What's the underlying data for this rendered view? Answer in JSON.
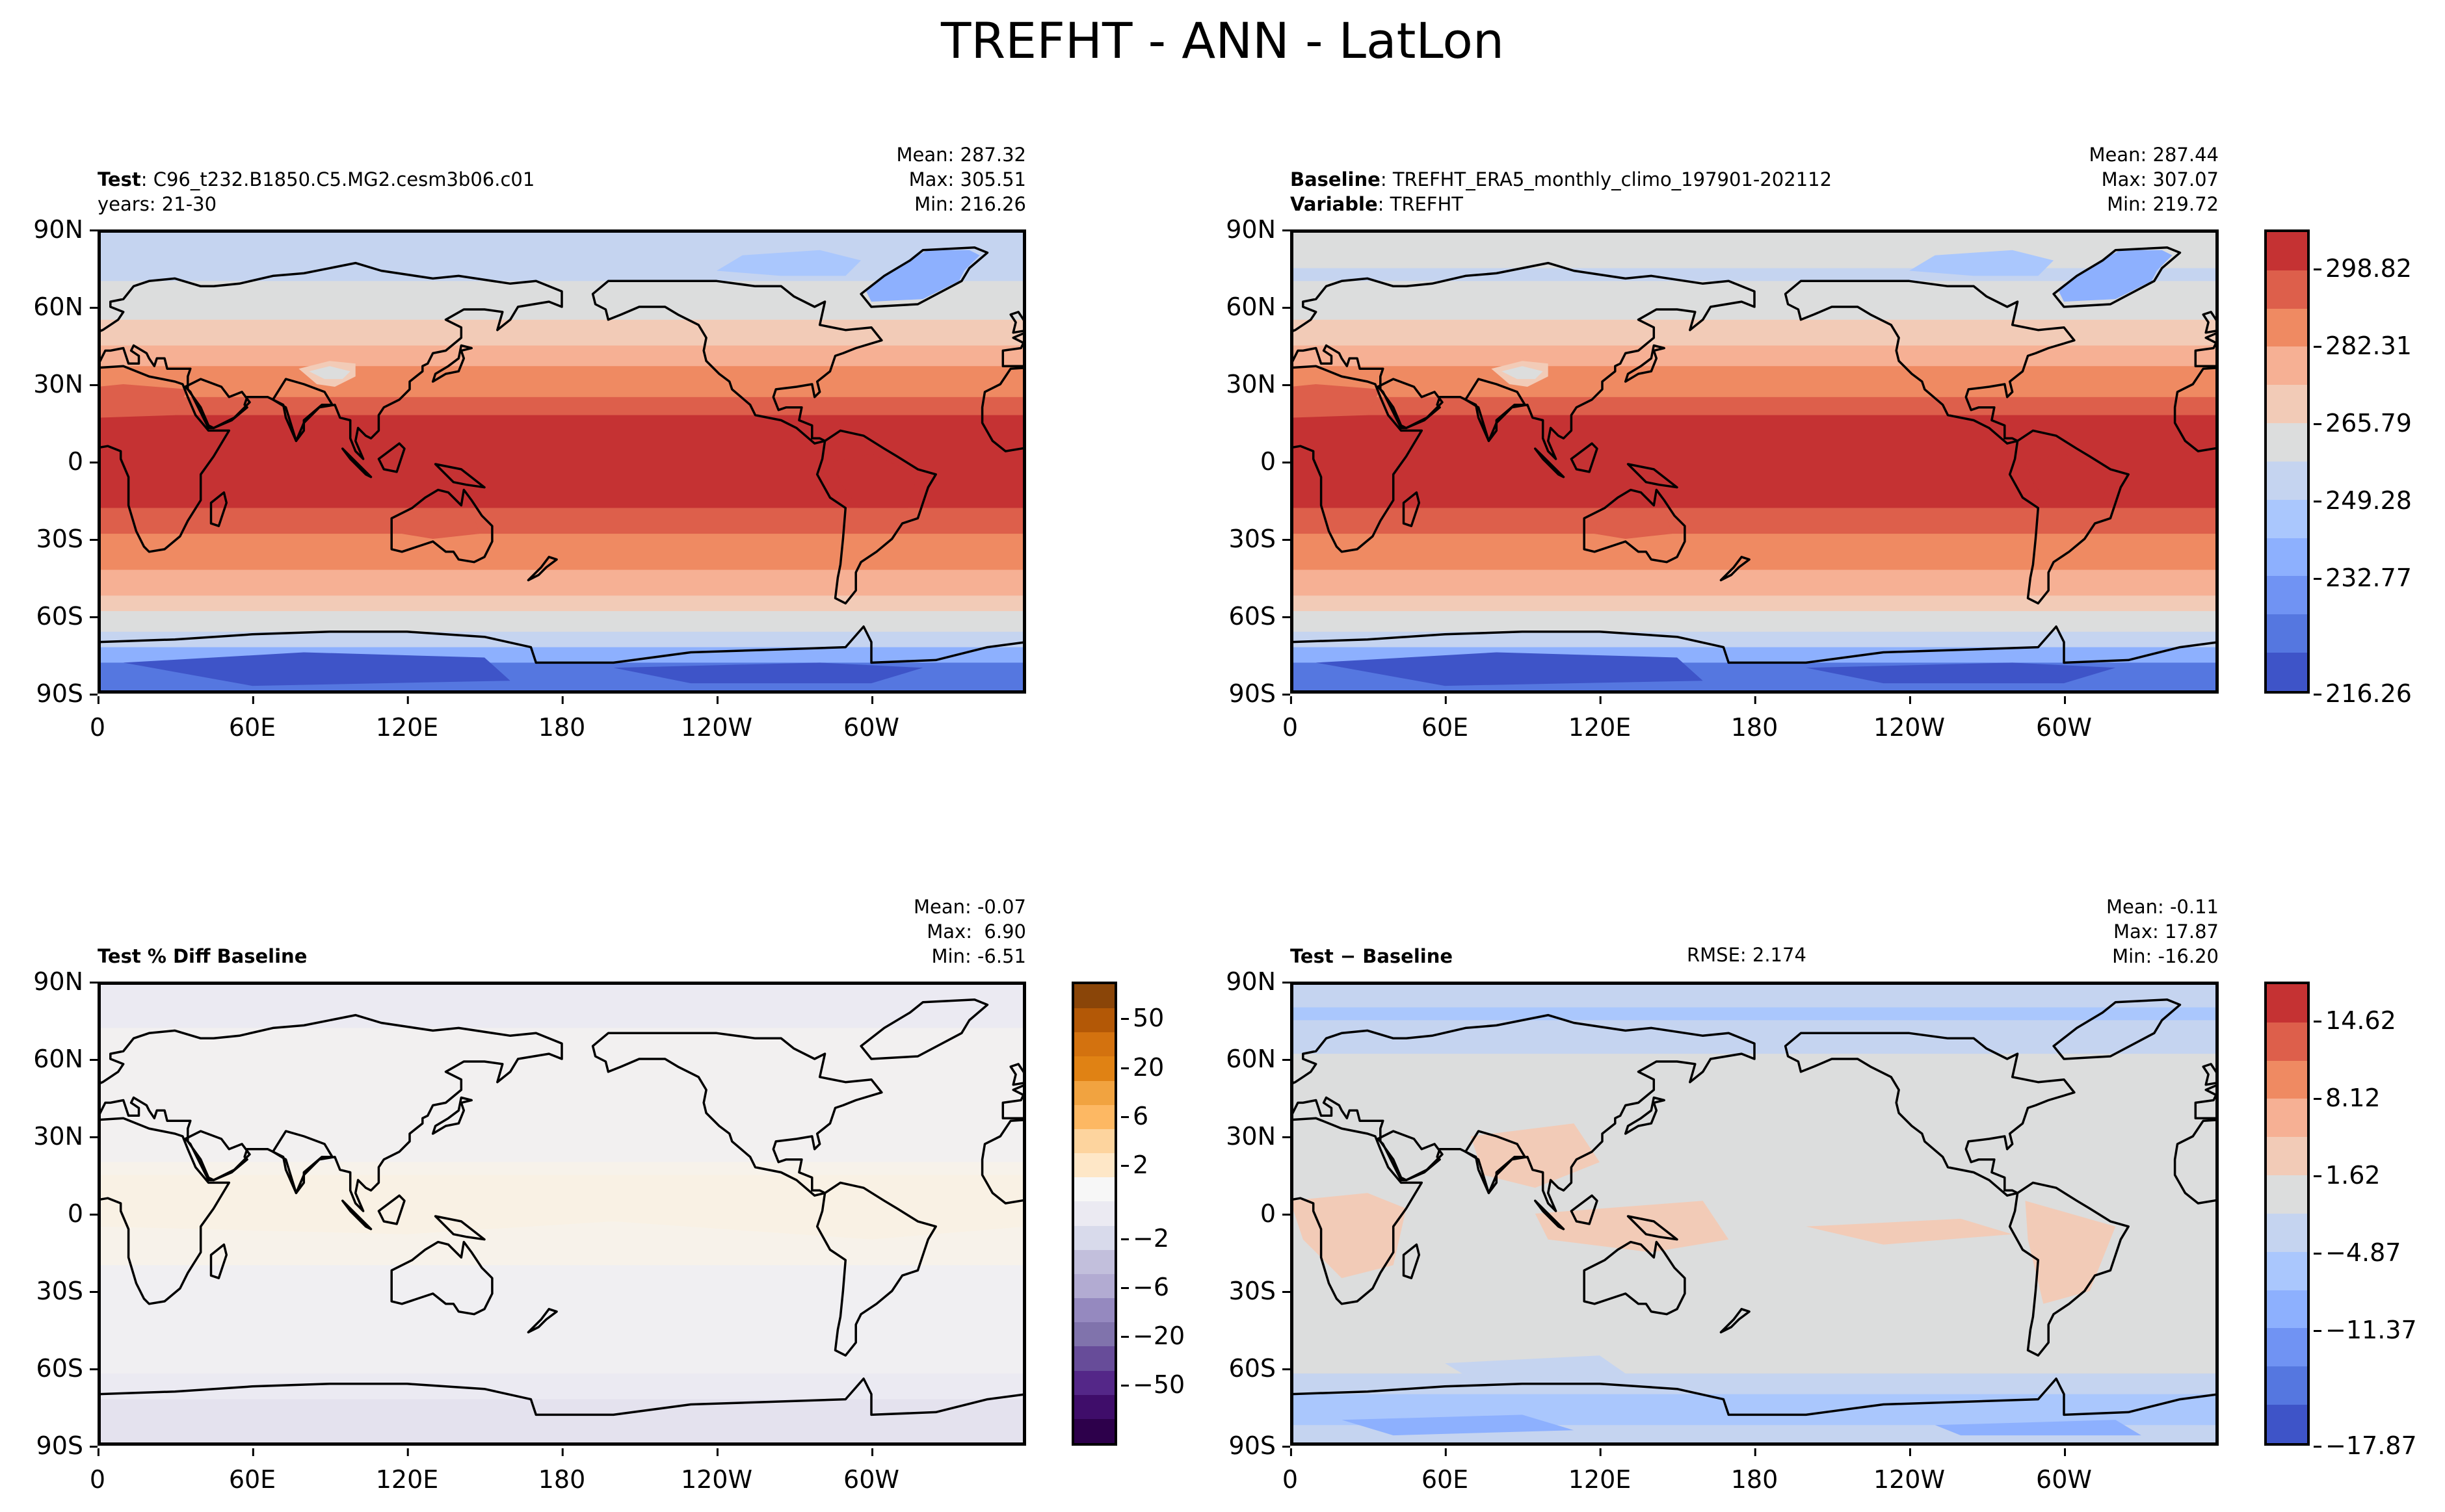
{
  "figure": {
    "title": "TREFHT - ANN - LatLon"
  },
  "axes": {
    "lat_ticks": [
      "90N",
      "60N",
      "30N",
      "0",
      "30S",
      "60S",
      "90S"
    ],
    "lon_ticks": [
      "0",
      "60E",
      "120E",
      "180",
      "120W",
      "60W"
    ]
  },
  "panels": {
    "test": {
      "label_bold": "Test",
      "label_value": "C96_t232.B1850.C5.MG2.cesm3b06.c01",
      "years": "years: 21-30",
      "mean": "Mean: 287.32",
      "max": "Max: 305.51",
      "min": "Min: 216.26"
    },
    "baseline": {
      "label_bold": "Baseline",
      "label_value": "TREFHT_ERA5_monthly_climo_197901-202112",
      "var_bold": "Variable",
      "var_value": "TREFHT",
      "mean": "Mean: 287.44",
      "max": "Max: 307.07",
      "min": "Min: 219.72"
    },
    "pctdiff": {
      "label": "Test % Diff Baseline",
      "mean": "Mean: -0.07",
      "max": "Max:  6.90",
      "min": "Min: -6.51"
    },
    "diff": {
      "label": "Test − Baseline",
      "rmse": "RMSE: 2.174",
      "mean": "Mean: -0.11",
      "max": "Max: 17.87",
      "min": "Min: -16.20"
    }
  },
  "colorbars": {
    "field": {
      "ticks": [
        "298.82",
        "282.31",
        "265.79",
        "249.28",
        "232.77",
        "216.26"
      ],
      "colors_top_to_bottom": [
        "#c53233",
        "#dd5f4b",
        "#ef8a62",
        "#f6b094",
        "#f2cbb7",
        "#dcdddd",
        "#c5d4f0",
        "#aac7fd",
        "#8db0fe",
        "#7093f3",
        "#5577e0",
        "#3e54c8"
      ]
    },
    "pctdiff": {
      "ticks": [
        "50",
        "20",
        "6",
        "2",
        "−2",
        "−6",
        "−20",
        "−50"
      ],
      "colors_top_to_bottom": [
        "#8a4508",
        "#b35806",
        "#d3720f",
        "#e08214",
        "#f1a340",
        "#fdb863",
        "#fdd49e",
        "#fee7c7",
        "#f7f7f7",
        "#ebeaf2",
        "#d8daeb",
        "#c2bfdc",
        "#b2abd2",
        "#9589bf",
        "#8073ac",
        "#674c99",
        "#542788",
        "#3f0d6a",
        "#2d004b"
      ]
    },
    "diff": {
      "ticks": [
        "14.62",
        "8.12",
        "1.62",
        "−4.87",
        "−11.37",
        "−17.87"
      ],
      "colors_top_to_bottom": [
        "#c53233",
        "#dd5f4b",
        "#ef8a62",
        "#f6b094",
        "#f2cbb7",
        "#dcdddd",
        "#c5d4f0",
        "#aac7fd",
        "#8db0fe",
        "#7093f3",
        "#5577e0",
        "#3e54c8"
      ]
    }
  },
  "chart_data": [
    {
      "type": "heatmap",
      "title": "TREFHT - ANN - LatLon",
      "panel": "Test",
      "case": "C96_t232.B1850.C5.MG2.cesm3b06.c01",
      "years": "21-30",
      "mean": 287.32,
      "max": 305.51,
      "min": 216.26,
      "x_range": [
        0,
        360
      ],
      "y_range": [
        -90,
        90
      ],
      "xticks": [
        "0",
        "60E",
        "120E",
        "180",
        "120W",
        "60W"
      ],
      "yticks": [
        "90N",
        "60N",
        "30N",
        "0",
        "30S",
        "60S",
        "90S"
      ],
      "zonal_profile": {
        "lat": [
          90,
          75,
          60,
          45,
          30,
          15,
          0,
          -15,
          -30,
          -45,
          -60,
          -70,
          -80,
          -90
        ],
        "value": [
          249,
          257,
          270,
          280,
          292,
          298,
          300,
          298,
          292,
          282,
          272,
          262,
          235,
          226
        ]
      }
    },
    {
      "type": "heatmap",
      "panel": "Baseline",
      "case": "TREFHT_ERA5_monthly_climo_197901-202112",
      "variable": "TREFHT",
      "mean": 287.44,
      "max": 307.07,
      "min": 219.72,
      "x_range": [
        0,
        360
      ],
      "y_range": [
        -90,
        90
      ],
      "colorbar_ticks": [
        298.82,
        282.31,
        265.79,
        249.28,
        232.77,
        216.26
      ],
      "zonal_profile": {
        "lat": [
          90,
          75,
          60,
          45,
          30,
          15,
          0,
          -15,
          -30,
          -45,
          -60,
          -70,
          -80,
          -90
        ],
        "value": [
          259,
          258,
          270,
          280,
          292,
          298,
          300,
          298,
          292,
          282,
          272,
          262,
          232,
          226
        ]
      }
    },
    {
      "type": "heatmap",
      "panel": "Test % Diff Baseline",
      "mean": -0.07,
      "max": 6.9,
      "min": -6.51,
      "colorbar_ticks": [
        50,
        20,
        6,
        2,
        -2,
        -6,
        -20,
        -50
      ]
    },
    {
      "type": "heatmap",
      "panel": "Test − Baseline",
      "rmse": 2.174,
      "mean": -0.11,
      "max": 17.87,
      "min": -16.2,
      "colorbar_ticks": [
        14.62,
        8.12,
        1.62,
        -4.87,
        -11.37,
        -17.87
      ]
    }
  ]
}
